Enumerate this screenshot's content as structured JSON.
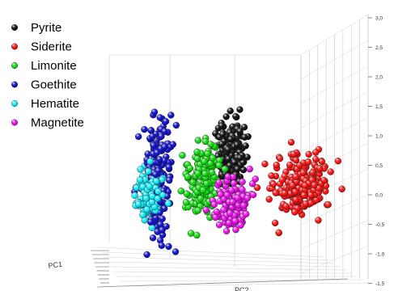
{
  "chart_data": {
    "type": "scatter",
    "dimensions": 3,
    "title": "",
    "series": [
      {
        "name": "Pyrite",
        "color": "#000000",
        "x": 1.2,
        "y": 1.4,
        "z": 1.5,
        "spread": [
          0.15,
          0.15,
          0.45
        ],
        "n": 170
      },
      {
        "name": "Siderite",
        "color": "#ff0000",
        "x": 1.2,
        "y": -1.6,
        "z": -0.6,
        "spread": [
          0.25,
          0.25,
          0.4
        ],
        "n": 230
      },
      {
        "name": "Limonite",
        "color": "#00dd00",
        "x": 0.0,
        "y": 0.0,
        "z": 0.3,
        "spread": [
          0.15,
          0.15,
          0.5
        ],
        "n": 160
      },
      {
        "name": "Goethite",
        "color": "#0000cc",
        "x": -0.8,
        "y": 0.2,
        "z": 0.7,
        "spread": [
          0.12,
          0.12,
          0.75
        ],
        "n": 200
      },
      {
        "name": "Hematite",
        "color": "#00eeff",
        "x": -1.0,
        "y": 0.1,
        "z": 0.1,
        "spread": [
          0.12,
          0.12,
          0.35
        ],
        "n": 110
      },
      {
        "name": "Magnetite",
        "color": "#ee00ee",
        "x": -0.2,
        "y": -1.8,
        "z": -1.0,
        "spread": [
          0.15,
          0.15,
          0.35
        ],
        "n": 150
      }
    ],
    "z_axis": {
      "ticks": [
        "3,0",
        "2,5",
        "2,0",
        "1,5",
        "1,0",
        "0,5",
        "0,0",
        "-0,5",
        "-1,0",
        "-1,5"
      ]
    },
    "x_axis": {
      "label": "PC2"
    },
    "y_axis": {
      "label": "PC1"
    },
    "legend": {
      "position": "top-left"
    },
    "grid": true
  }
}
